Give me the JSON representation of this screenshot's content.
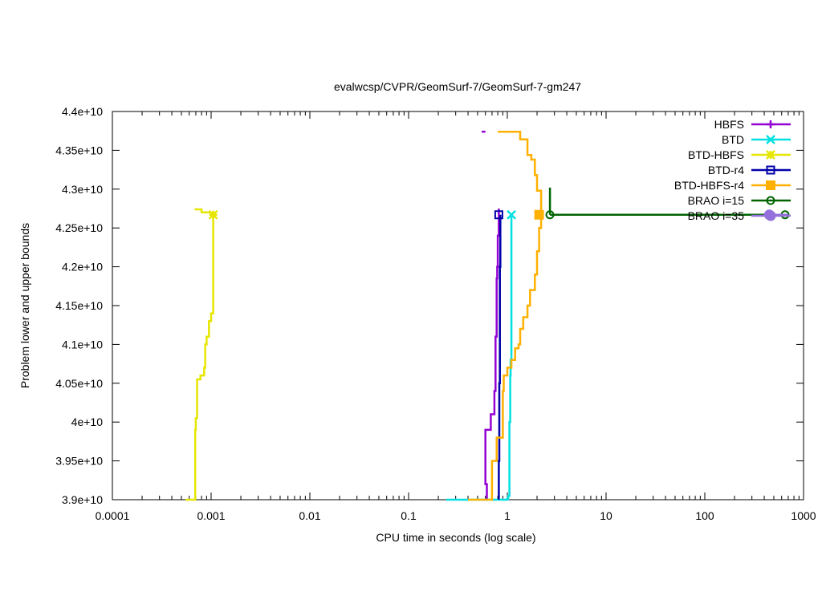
{
  "chart_data": {
    "type": "line",
    "title": "evalwcsp/CVPR/GeomSurf-7/GeomSurf-7-gm247",
    "xlabel": "CPU time in seconds (log scale)",
    "ylabel": "Problem lower and upper bounds",
    "xscale": "log",
    "xlim": [
      0.0001,
      1000
    ],
    "ylim": [
      39000000000,
      44000000000
    ],
    "xticks": [
      {
        "value": 0.0001,
        "label": "0.0001"
      },
      {
        "value": 0.001,
        "label": "0.001"
      },
      {
        "value": 0.01,
        "label": "0.01"
      },
      {
        "value": 0.1,
        "label": "0.1"
      },
      {
        "value": 1,
        "label": "1"
      },
      {
        "value": 10,
        "label": "10"
      },
      {
        "value": 100,
        "label": "100"
      },
      {
        "value": 1000,
        "label": "1000"
      }
    ],
    "yticks": [
      {
        "value": 39000000000,
        "label": "3.9e+10"
      },
      {
        "value": 39500000000,
        "label": "3.95e+10"
      },
      {
        "value": 40000000000,
        "label": "4e+10"
      },
      {
        "value": 40500000000,
        "label": "4.05e+10"
      },
      {
        "value": 41000000000,
        "label": "4.1e+10"
      },
      {
        "value": 41500000000,
        "label": "4.15e+10"
      },
      {
        "value": 42000000000,
        "label": "4.2e+10"
      },
      {
        "value": 42500000000,
        "label": "4.25e+10"
      },
      {
        "value": 43000000000,
        "label": "4.3e+10"
      },
      {
        "value": 43500000000,
        "label": "4.35e+10"
      },
      {
        "value": 44000000000,
        "label": "4.4e+10"
      }
    ],
    "grid": false,
    "legend_position": "top-right",
    "series": [
      {
        "name": "HBFS",
        "color": "#9400d3",
        "marker": "plus",
        "step": true,
        "upper": {
          "x": [
            0.55,
            0.6
          ],
          "y": [
            43740000000,
            43740000000
          ]
        },
        "lower": {
          "x": [
            0.6,
            0.62,
            0.6,
            0.6,
            0.68,
            0.74,
            0.76,
            0.78,
            0.78,
            0.79,
            0.8,
            0.8,
            0.82,
            0.82,
            0.82,
            0.82
          ],
          "y": [
            39000000000,
            39200000000,
            39880000000,
            39900000000,
            40100000000,
            40400000000,
            41100000000,
            41600000000,
            41850000000,
            42000000000,
            42200000000,
            42400000000,
            42600000000,
            42650000000,
            42700000000,
            42750000000
          ]
        },
        "markers": []
      },
      {
        "name": "BTD",
        "color": "#00e0e0",
        "marker": "x",
        "step": true,
        "upper": {
          "x": [],
          "y": []
        },
        "lower": {
          "x": [
            0.24,
            0.4,
            0.5,
            0.9,
            1.0,
            1.02,
            1.05,
            1.05,
            1.07,
            1.07,
            1.08,
            1.1,
            1.1,
            1.1
          ],
          "y": [
            39000000000,
            39000000000,
            39000000000,
            39000000000,
            39010000000,
            39050000000,
            39500000000,
            40000000000,
            40500000000,
            40600000000,
            40800000000,
            41000000000,
            42000000000,
            42670000000
          ]
        },
        "markers": [
          {
            "x": 1.1,
            "y": 42670000000
          }
        ]
      },
      {
        "name": "BTD-HBFS",
        "color": "#e6e600",
        "marker": "star",
        "step": true,
        "upper": {
          "x": [
            0.00068,
            0.00075,
            0.0008,
            0.001
          ],
          "y": [
            42740000000,
            42740000000,
            42700000000,
            42700000000
          ]
        },
        "lower": {
          "x": [
            0.00055,
            0.00068,
            0.00069,
            0.0007,
            0.00072,
            0.00078,
            0.00085,
            0.00087,
            0.0009,
            0.00095,
            0.001,
            0.00105,
            0.00105
          ],
          "y": [
            39000000000,
            39000000000,
            39900000000,
            40050000000,
            40550000000,
            40600000000,
            40700000000,
            41000000000,
            41100000000,
            41300000000,
            41400000000,
            42600000000,
            42670000000
          ]
        },
        "markers": [
          {
            "x": 0.00105,
            "y": 42670000000
          }
        ]
      },
      {
        "name": "BTD-r4",
        "color": "#0000aa",
        "marker": "square-open",
        "step": true,
        "upper": {
          "x": [],
          "y": []
        },
        "lower": {
          "x": [
            0.82,
            0.82,
            0.83,
            0.84,
            0.85,
            0.85
          ],
          "y": [
            39000000000,
            39500000000,
            40500000000,
            42000000000,
            42500000000,
            42670000000
          ]
        },
        "markers": [
          {
            "x": 0.82,
            "y": 42670000000
          }
        ]
      },
      {
        "name": "BTD-HBFS-r4",
        "color": "#ffb000",
        "marker": "square-filled",
        "step": true,
        "upper": {
          "x": [
            0.8,
            1.1,
            1.35,
            1.6,
            1.75,
            1.9,
            2.0,
            2.2
          ],
          "y": [
            43740000000,
            43740000000,
            43640000000,
            43440000000,
            43380000000,
            43180000000,
            42980000000,
            42700000000
          ]
        },
        "lower": {
          "x": [
            0.4,
            0.62,
            0.7,
            0.78,
            0.9,
            0.92,
            1.0,
            1.1,
            1.2,
            1.3,
            1.35,
            1.45,
            1.6,
            1.7,
            1.9,
            2.0,
            2.1,
            2.2
          ],
          "y": [
            39000000000,
            39000000000,
            39500000000,
            39800000000,
            40400000000,
            40600000000,
            40700000000,
            40800000000,
            40950000000,
            41000000000,
            41200000000,
            41350000000,
            41500000000,
            41700000000,
            41900000000,
            42200000000,
            42500000000,
            42670000000
          ]
        },
        "markers": [
          {
            "x": 2.1,
            "y": 42670000000
          }
        ]
      },
      {
        "name": "BRAO i=15",
        "color": "#006400",
        "marker": "circle-open",
        "step": true,
        "upper": {
          "x": [
            2.7,
            2.7
          ],
          "y": [
            43020000000,
            42670000000
          ]
        },
        "lower": {
          "x": [
            2.7,
            700
          ],
          "y": [
            42670000000,
            42670000000
          ]
        },
        "markers": [
          {
            "x": 2.7,
            "y": 42670000000
          },
          {
            "x": 650,
            "y": 42670000000
          }
        ]
      },
      {
        "name": "BRAO i=35",
        "color": "#9370db",
        "marker": "circle-filled",
        "step": true,
        "upper": {
          "x": [],
          "y": []
        },
        "lower": {
          "x": [
            420,
            700
          ],
          "y": [
            42670000000,
            42670000000
          ]
        },
        "markers": [
          {
            "x": 450,
            "y": 42670000000
          }
        ]
      }
    ]
  }
}
